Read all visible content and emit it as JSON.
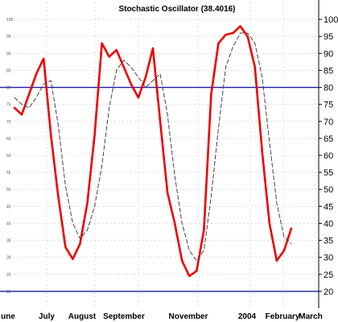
{
  "chart_data": {
    "type": "line",
    "title": "Stochastic Oscillator (38.4016)",
    "xlabel": "",
    "ylabel": "",
    "ylim": [
      15,
      105
    ],
    "y_ticks": [
      20,
      25,
      30,
      35,
      40,
      45,
      50,
      55,
      60,
      65,
      70,
      75,
      80,
      85,
      90,
      95,
      100
    ],
    "y_ticks_left": [
      20,
      25,
      30,
      35,
      40,
      45,
      50,
      55,
      60,
      65,
      70,
      75,
      80,
      85,
      90,
      95,
      100
    ],
    "x_labels": [
      "une",
      "July",
      "August",
      "September",
      "November",
      "2004",
      "February",
      "March"
    ],
    "grid": true,
    "reference_lines": [
      80,
      20
    ],
    "series": [
      {
        "style": "solid",
        "color": "#ee0000",
        "values": [
          74,
          72,
          78,
          84,
          88.5,
          66,
          48,
          33,
          29.5,
          34,
          46,
          66,
          93,
          89,
          91,
          86,
          81,
          77,
          83,
          91.5,
          70,
          49,
          40,
          29,
          24.5,
          26,
          38,
          78,
          93,
          95.5,
          96,
          98,
          95,
          86,
          61,
          40,
          29,
          32,
          38.5
        ]
      },
      {
        "style": "dashed",
        "color": "#444444",
        "values": [
          77,
          75,
          74,
          77,
          81,
          82,
          69,
          51,
          40,
          35.5,
          38,
          45,
          57,
          74,
          85,
          88,
          86,
          83,
          80,
          82,
          84,
          72,
          54,
          40,
          32,
          29,
          32,
          48,
          68,
          86,
          92,
          96,
          96,
          93,
          83,
          64,
          46,
          36,
          34
        ]
      }
    ]
  },
  "colors": {
    "reference_line": "#1c1ca8",
    "grid": "#c8c8c8"
  }
}
